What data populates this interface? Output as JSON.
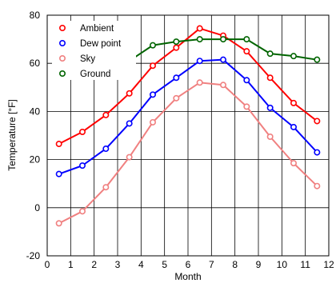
{
  "chart_data": {
    "type": "line",
    "xlabel": "Month",
    "ylabel": "Temperature [°F]",
    "xlim": [
      0,
      12
    ],
    "ylim": [
      -20,
      80
    ],
    "xticks": [
      0,
      1,
      2,
      3,
      4,
      5,
      6,
      7,
      8,
      9,
      10,
      11,
      12
    ],
    "yticks": [
      -20,
      0,
      20,
      40,
      60,
      80
    ],
    "grid": true,
    "legend_position": "top-left",
    "series": [
      {
        "name": "Ambient",
        "color": "#ff0000",
        "x": [
          0.5,
          1.5,
          2.5,
          3.5,
          4.5,
          5.5,
          6.5,
          7.5,
          8.5,
          9.5,
          10.5,
          11.5
        ],
        "y": [
          26.5,
          31.5,
          38.5,
          47.5,
          59,
          66.5,
          74.5,
          71.5,
          65,
          54,
          43.5,
          36
        ]
      },
      {
        "name": "Dew point",
        "color": "#0000ff",
        "x": [
          0.5,
          1.5,
          2.5,
          3.5,
          4.5,
          5.5,
          6.5,
          7.5,
          8.5,
          9.5,
          10.5,
          11.5
        ],
        "y": [
          14,
          17.5,
          24.5,
          35,
          47,
          54,
          61,
          61.5,
          53,
          41.5,
          33.5,
          23
        ]
      },
      {
        "name": "Sky",
        "color": "#f08080",
        "x": [
          0.5,
          1.5,
          2.5,
          3.5,
          4.5,
          5.5,
          6.5,
          7.5,
          8.5,
          9.5,
          10.5,
          11.5
        ],
        "y": [
          -6.5,
          -1.5,
          8.5,
          21,
          35.5,
          45.5,
          52,
          51,
          42,
          29.5,
          18.5,
          9
        ]
      },
      {
        "name": "Ground",
        "color": "#006400",
        "x": [
          3.5,
          4.5,
          5.5,
          6.5,
          7.5,
          8.5,
          9.5,
          10.5,
          11.5
        ],
        "y": [
          61,
          67.5,
          69,
          70,
          70,
          70,
          64,
          63,
          61.5
        ]
      }
    ]
  }
}
